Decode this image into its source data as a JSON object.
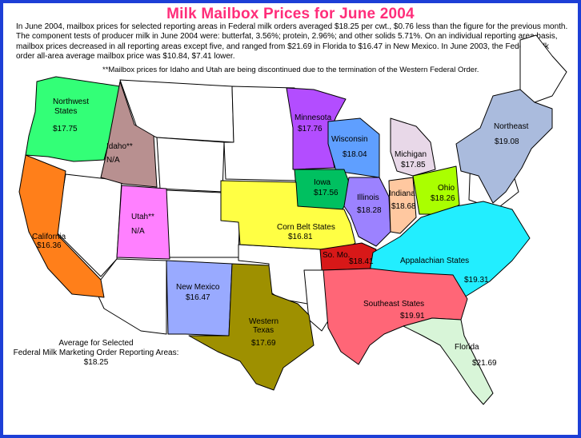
{
  "title": "Milk Mailbox Prices for June 2004",
  "intro": "In June 2004, mailbox prices for selected reporting areas in Federal milk orders averaged $18.25 per cwt., $0.76 less than the figure for the previous month. The component tests of producer milk in June 2004 were: butterfat, 3.56%; protein, 2.96%; and other solids 5.71%. On an individual reporting area basis, mailbox prices decreased in all reporting areas except five, and ranged from $21.69 in Florida to $16.47 in New Mexico.  In June 2003, the Federal milk order all-area average mailbox price was $10.84, $7.41 lower.",
  "note": "**Mailbox prices for Idaho and Utah are being discontinued due to the termination of the Western Federal Order.",
  "average": {
    "line1": "Average for Selected",
    "line2": "Federal Milk Marketing Order Reporting Areas:",
    "value": "$18.25"
  },
  "regions": {
    "northwest": {
      "name1": "Northwest",
      "name2": "States",
      "price": "$17.75",
      "color": "#33ff77"
    },
    "idaho": {
      "name": "Idaho**",
      "price": "N/A",
      "color": "#b89090"
    },
    "california": {
      "name": "California",
      "price": "$16.36",
      "color": "#ff7f1a"
    },
    "utah": {
      "name": "Utah**",
      "price": "N/A",
      "color": "#ff80ff"
    },
    "new_mexico": {
      "name": "New Mexico",
      "price": "$16.47",
      "color": "#99aaff"
    },
    "western_texas": {
      "name1": "Western",
      "name2": "Texas",
      "price": "$17.69",
      "color": "#9e9000"
    },
    "minnesota": {
      "name": "Minnesota",
      "price": "$17.76",
      "color": "#b34dff"
    },
    "wisconsin": {
      "name": "Wisconsin",
      "price": "$18.04",
      "color": "#5f9fff"
    },
    "iowa": {
      "name": "Iowa",
      "price": "$17.56",
      "color": "#00c060"
    },
    "michigan": {
      "name": "Michigan",
      "price": "$17.85",
      "color": "#e8d8e8"
    },
    "illinois": {
      "name": "Illinois",
      "price": "$18.28",
      "color": "#9c82ff"
    },
    "indiana": {
      "name": "Indiana",
      "price": "$18.68",
      "color": "#ffc8a0"
    },
    "ohio": {
      "name": "Ohio",
      "price": "$18.26",
      "color": "#aaff00"
    },
    "northeast": {
      "name": "Northeast",
      "price": "$19.08",
      "color": "#aabbdd"
    },
    "corn_belt": {
      "name": "Corn Belt States",
      "price": "$16.81",
      "color": "#ffff44"
    },
    "so_mo": {
      "name": "So. Mo.",
      "price": "$18.41",
      "color": "#d81818"
    },
    "appalachian": {
      "name": "Appalachian States",
      "price": "$19.31",
      "color": "#22eeff"
    },
    "southeast": {
      "name": "Southeast States",
      "price": "$19.91",
      "color": "#ff6677"
    },
    "florida": {
      "name": "Florida",
      "price": "$21.69",
      "color": "#d8f5d8"
    }
  }
}
